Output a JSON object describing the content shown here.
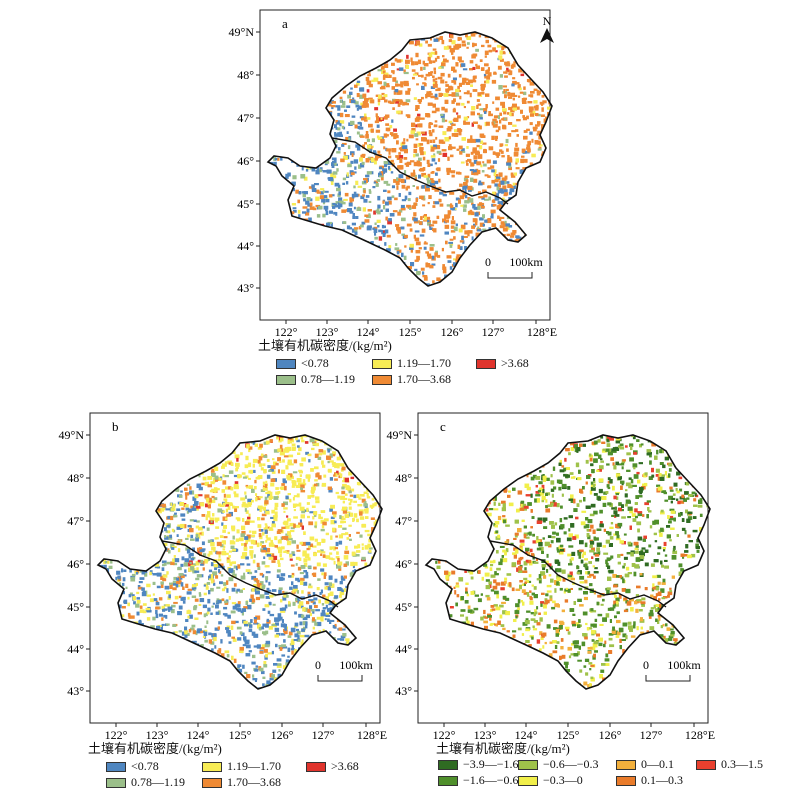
{
  "colors": {
    "c_blue": "#4f86c0",
    "c_sage": "#9bbf8a",
    "c_yellow": "#f7ec55",
    "c_orange": "#ef8a34",
    "c_red": "#e0342d",
    "d_dkgreen": "#2f6b22",
    "d_green": "#4f8f2b",
    "d_olive": "#9fc24a",
    "d_yellow": "#f1ef4a",
    "d_gold": "#f3b03c",
    "d_orange": "#e97b2a",
    "d_red": "#e8402e"
  },
  "panels": {
    "a": {
      "label": "a"
    },
    "b": {
      "label": "b"
    },
    "c": {
      "label": "c"
    }
  },
  "lat_ticks": [
    "49°N",
    "48°",
    "47°",
    "46°",
    "45°",
    "44°",
    "43°"
  ],
  "lon_ticks": [
    "122°",
    "123°",
    "124°",
    "125°",
    "126°",
    "127°",
    "128°E"
  ],
  "north_label": "N",
  "scalebar": {
    "zero": "0",
    "distance": "100km"
  },
  "legend_title": "土壤有机碳密度/(kg/m²)",
  "legend_density": [
    {
      "label": "<0.78",
      "color": "#4f86c0"
    },
    {
      "label": "0.78—1.19",
      "color": "#9bbf8a"
    },
    {
      "label": "1.19—1.70",
      "color": "#f7ec55"
    },
    {
      "label": "1.70—3.68",
      "color": "#ef8a34"
    },
    {
      "label": ">3.68",
      "color": "#e0342d"
    }
  ],
  "legend_change": [
    {
      "label": "−3.9—−1.6",
      "color": "#2f6b22"
    },
    {
      "label": "−1.6—−0.6",
      "color": "#4f8f2b"
    },
    {
      "label": "−0.6—−0.3",
      "color": "#9fc24a"
    },
    {
      "label": "−0.3—0",
      "color": "#f1ef4a"
    },
    {
      "label": "0—0.1",
      "color": "#f3b03c"
    },
    {
      "label": "0.1—0.3",
      "color": "#e97b2a"
    },
    {
      "label": "0.3—1.5",
      "color": "#e8402e"
    }
  ]
}
